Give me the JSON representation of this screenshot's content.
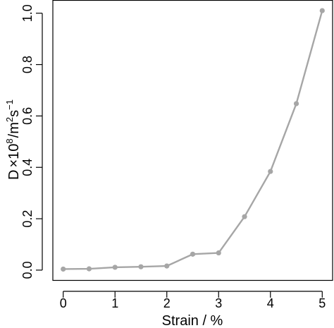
{
  "chart_data": {
    "type": "line",
    "x": [
      0,
      0.5,
      1,
      1.5,
      2,
      2.5,
      3,
      3.5,
      4,
      4.5,
      5
    ],
    "series": [
      {
        "values": [
          0.004,
          0.005,
          0.011,
          0.013,
          0.016,
          0.062,
          0.067,
          0.208,
          0.384,
          0.648,
          1.01
        ]
      }
    ],
    "xlabel": "Strain / %",
    "ylabel": {
      "base": "D",
      "times": "×",
      "ten": "10",
      "exp": "8",
      "slash": "/",
      "unit_m": "m",
      "unit_m_exp": "2",
      "unit_s": "s",
      "unit_s_exp": "−1"
    },
    "xticks": [
      0,
      1,
      2,
      3,
      4,
      5
    ],
    "xtick_labels": [
      "0",
      "1",
      "2",
      "3",
      "4",
      "5"
    ],
    "yticks": [
      0.0,
      0.2,
      0.4,
      0.6,
      0.8,
      1.0
    ],
    "ytick_labels": [
      "0.0",
      "0.2",
      "0.4",
      "0.6",
      "0.8",
      "1.0"
    ],
    "xlim": [
      -0.2,
      5.2
    ],
    "ylim": [
      -0.04,
      1.05
    ],
    "grid": false,
    "legend": "none",
    "line_color": "#a6a6a6",
    "point_color": "#a6a6a6",
    "axis_color": "#000000"
  }
}
